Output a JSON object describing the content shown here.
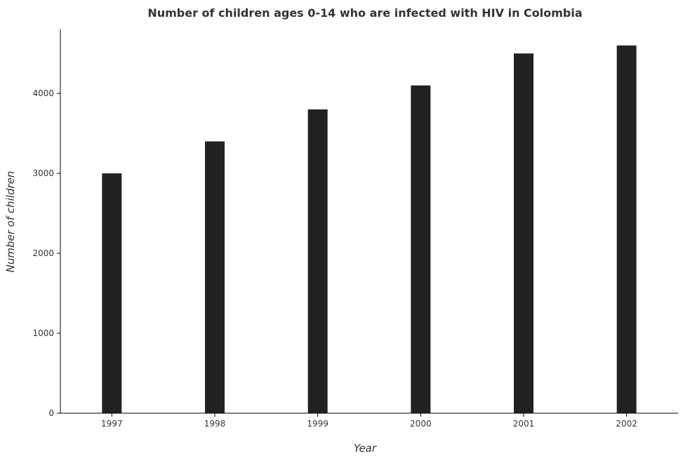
{
  "chart_data": {
    "type": "bar",
    "title": "Number of children ages 0-14 who are infected with HIV in Colombia",
    "xlabel": "Year",
    "ylabel": "Number of children",
    "categories": [
      "1997",
      "1998",
      "1999",
      "2000",
      "2001",
      "2002"
    ],
    "values": [
      3000,
      3400,
      3800,
      4100,
      4500,
      4600
    ],
    "ylim": [
      0,
      4800
    ],
    "yticks": [
      0,
      1000,
      2000,
      3000,
      4000
    ],
    "ytick_labels": [
      "0",
      "1000",
      "2000",
      "3000",
      "4000"
    ],
    "grid": false,
    "bar_color": "#222222"
  }
}
